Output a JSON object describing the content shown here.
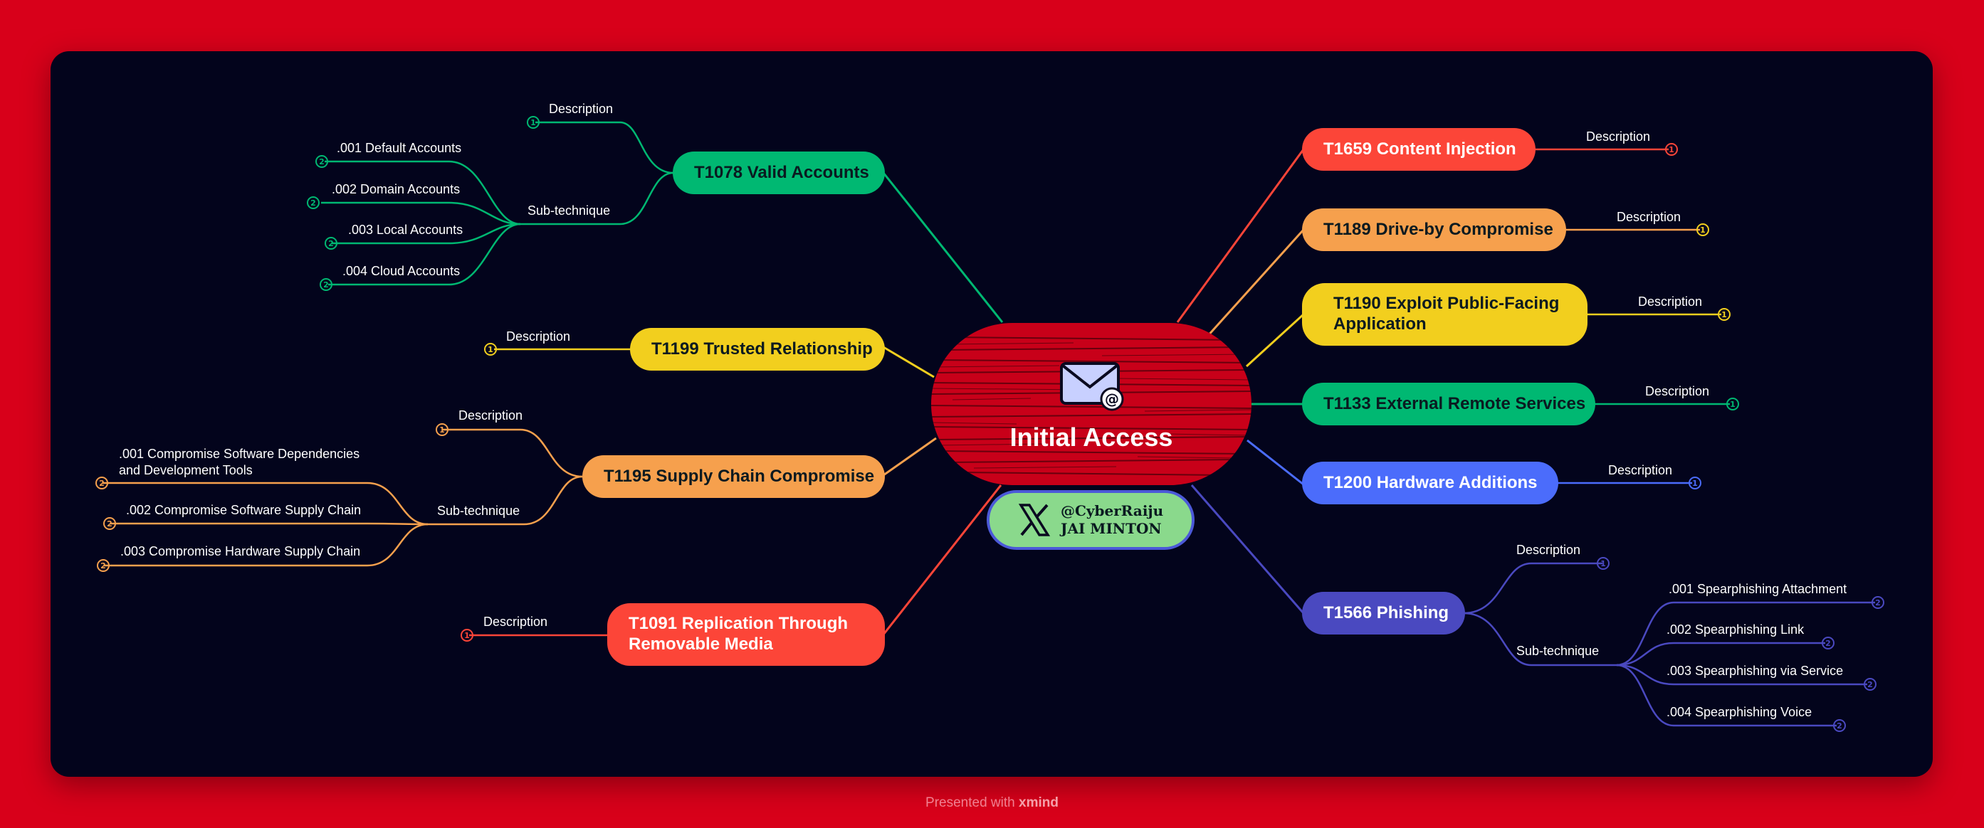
{
  "center": {
    "title": "Initial Access",
    "social_handle": "@CyberRaiju",
    "social_name": "JAI MINTON",
    "icon": "envelope-at-icon",
    "color": "#c80019"
  },
  "footer": {
    "prefix": "Presented with",
    "brand": "xmind"
  },
  "techniques": {
    "t1078": {
      "label": "T1078 Valid Accounts",
      "color": "#00b872",
      "description": "Description",
      "description_badge": "1",
      "sub_label": "Sub-technique",
      "subs": [
        {
          "label": ".001 Default Accounts",
          "badge": "2"
        },
        {
          "label": ".002 Domain Accounts",
          "badge": "2"
        },
        {
          "label": ".003 Local Accounts",
          "badge": "2"
        },
        {
          "label": ".004 Cloud Accounts",
          "badge": "2"
        }
      ]
    },
    "t1199": {
      "label": "T1199 Trusted Relationship",
      "color": "#f2cf1e",
      "description": "Description",
      "description_badge": "1"
    },
    "t1195": {
      "label": "T1195 Supply Chain Compromise",
      "color": "#f6a04d",
      "description": "Description",
      "description_badge": "1",
      "sub_label": "Sub-technique",
      "subs": [
        {
          "label": ".001 Compromise Software Dependencies",
          "label2": "and Development Tools",
          "badge": "2"
        },
        {
          "label": ".002 Compromise Software Supply Chain",
          "badge": "2"
        },
        {
          "label": ".003 Compromise Hardware Supply Chain",
          "badge": "2"
        }
      ]
    },
    "t1091": {
      "label": "T1091 Replication Through",
      "label2": "Removable Media",
      "color": "#fc4538",
      "description": "Description",
      "description_badge": "1"
    },
    "t1659": {
      "label": "T1659 Content Injection",
      "color": "#fc4538",
      "description": "Description",
      "description_badge": "1"
    },
    "t1189": {
      "label": "T1189 Drive-by Compromise",
      "color": "#f6a04d",
      "description": "Description",
      "description_badge": "1"
    },
    "t1190": {
      "label": "T1190 Exploit Public-Facing",
      "label2": "Application",
      "color": "#f2cf1e",
      "description": "Description",
      "description_badge": "1"
    },
    "t1133": {
      "label": "T1133 External Remote Services",
      "color": "#00b872",
      "description": "Description",
      "description_badge": "1"
    },
    "t1200": {
      "label": "T1200 Hardware Additions",
      "color": "#4b6cfb",
      "description": "Description",
      "description_badge": "1"
    },
    "t1566": {
      "label": "T1566 Phishing",
      "color": "#4a49c0",
      "description": "Description",
      "description_badge": "1",
      "sub_label": "Sub-technique",
      "subs": [
        {
          "label": ".001 Spearphishing Attachment",
          "badge": "2"
        },
        {
          "label": ".002 Spearphishing Link",
          "badge": "2"
        },
        {
          "label": ".003  Spearphishing via Service",
          "badge": "2"
        },
        {
          "label": ".004  Spearphishing Voice",
          "badge": "2"
        }
      ]
    }
  }
}
